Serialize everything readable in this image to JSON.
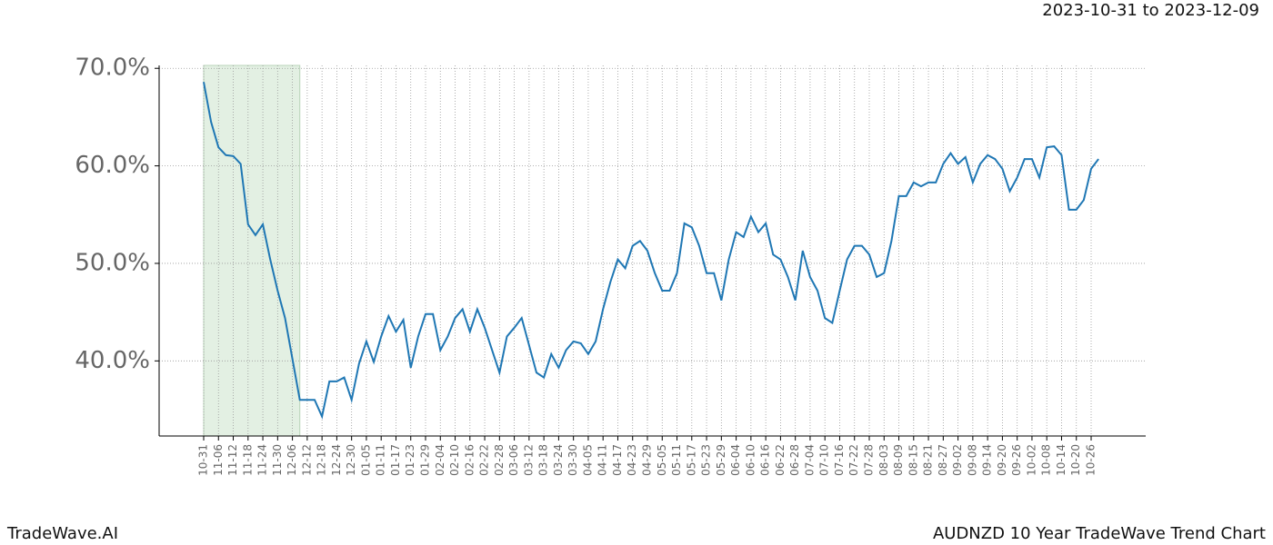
{
  "chart_data": {
    "type": "line",
    "subtitle": "2023-10-31 to 2023-12-09",
    "footer_left": "TradeWave.AI",
    "footer_right": "AUDNZD 10 Year TradeWave Trend Chart",
    "categories": [
      "10-31",
      null,
      "11-06",
      null,
      "11-12",
      null,
      "11-18",
      null,
      "11-24",
      null,
      "11-30",
      null,
      "12-06",
      null,
      "12-12",
      null,
      "12-18",
      null,
      "12-24",
      null,
      "12-30",
      null,
      "01-05",
      null,
      "01-11",
      null,
      "01-17",
      null,
      "01-23",
      null,
      "01-29",
      null,
      "02-04",
      null,
      "02-10",
      null,
      "02-16",
      null,
      "02-22",
      null,
      "02-28",
      null,
      "03-06",
      null,
      "03-12",
      null,
      "03-18",
      null,
      "03-24",
      null,
      "03-30",
      null,
      "04-05",
      null,
      "04-11",
      null,
      "04-17",
      null,
      "04-23",
      null,
      "04-29",
      null,
      "05-05",
      null,
      "05-11",
      null,
      "05-17",
      null,
      "05-23",
      null,
      "05-29",
      null,
      "06-04",
      null,
      "06-10",
      null,
      "06-16",
      null,
      "06-22",
      null,
      "06-28",
      null,
      "07-04",
      null,
      "07-10",
      null,
      "07-16",
      null,
      "07-22",
      null,
      "07-28",
      null,
      "08-03",
      null,
      "08-09",
      null,
      "08-15",
      null,
      "08-21",
      null,
      "08-27",
      null,
      "09-02",
      null,
      "09-08",
      null,
      "09-14",
      null,
      "09-20",
      null,
      "09-26",
      null,
      "10-02",
      null,
      "10-08",
      null,
      "10-14",
      null,
      "10-20",
      null,
      "10-26",
      null
    ],
    "series": [
      {
        "color": "#1f77b4",
        "values": [
          68.6,
          64.5,
          61.9,
          61.1,
          61.0,
          60.2,
          54.0,
          52.9,
          54.0,
          50.4,
          47.2,
          44.4,
          40.2,
          36.0,
          36.0,
          36.0,
          34.3,
          37.9,
          37.9,
          38.3,
          36.0,
          39.7,
          42.0,
          39.9,
          42.5,
          44.6,
          43.0,
          44.2,
          39.3,
          42.5,
          44.8,
          44.8,
          41.1,
          42.5,
          44.4,
          45.3,
          43.0,
          45.3,
          43.4,
          41.1,
          38.8,
          42.5,
          43.4,
          44.4,
          41.6,
          38.8,
          38.3,
          40.7,
          39.3,
          41.1,
          42.0,
          41.8,
          40.7,
          42.0,
          45.3,
          48.1,
          50.4,
          49.5,
          51.8,
          52.3,
          51.3,
          49.0,
          47.2,
          47.2,
          49.0,
          54.1,
          53.7,
          51.8,
          49.0,
          49.0,
          46.2,
          50.4,
          53.2,
          52.7,
          54.8,
          53.2,
          54.1,
          50.9,
          50.4,
          48.6,
          46.2,
          51.3,
          48.6,
          47.2,
          44.4,
          43.9,
          47.2,
          50.4,
          51.8,
          51.8,
          50.9,
          48.6,
          49.0,
          52.3,
          56.9,
          56.9,
          58.3,
          57.9,
          58.3,
          58.3,
          60.2,
          61.3,
          60.2,
          60.9,
          58.3,
          60.2,
          61.1,
          60.7,
          59.7,
          57.4,
          58.8,
          60.7,
          60.7,
          58.8,
          61.9,
          62.0,
          61.1,
          55.5,
          55.5,
          56.5,
          59.7,
          60.7
        ]
      }
    ],
    "highlight": [
      0,
      13
    ],
    "highlight_color": "#e3f0e3",
    "ylim": [
      32.3,
      70.3
    ],
    "yticks": [
      {
        "value": 40,
        "label": "40.0%"
      },
      {
        "value": 50,
        "label": "50.0%"
      },
      {
        "value": 60,
        "label": "60.0%"
      },
      {
        "value": 70,
        "label": "70.0%"
      }
    ],
    "grid": true
  }
}
